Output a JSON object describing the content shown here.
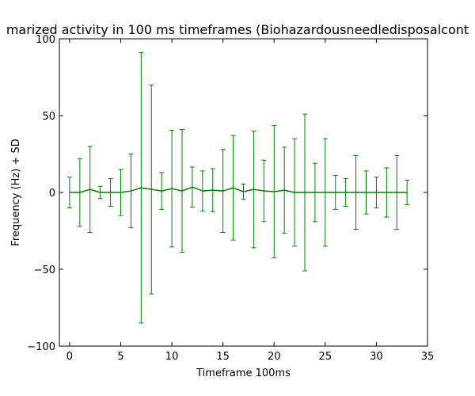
{
  "chart_data": {
    "type": "line",
    "title": "marized activity in 100 ms timeframes (Biohazardousneedledisposalcont",
    "xlabel": "Timeframe 100ms",
    "ylabel": "Frequency (Hz) + SD",
    "xlim": [
      -1,
      35
    ],
    "ylim": [
      -100,
      100
    ],
    "xticks": [
      0,
      5,
      10,
      15,
      20,
      25,
      30,
      35
    ],
    "yticks": [
      -100,
      -50,
      0,
      50,
      100
    ],
    "xtick_labels": [
      "0",
      "5",
      "10",
      "15",
      "20",
      "25",
      "30",
      "35"
    ],
    "ytick_labels": [
      "−100",
      "−50",
      "0",
      "50",
      "100"
    ],
    "grid": false,
    "color": "#008000",
    "series": [
      {
        "x": [
          0,
          1,
          2,
          3,
          4,
          5,
          6,
          7,
          8,
          9,
          10,
          11,
          12,
          13,
          14,
          15,
          16,
          17,
          18,
          19,
          20,
          21,
          22,
          23,
          24,
          25,
          26,
          27,
          28,
          29,
          30,
          31,
          32,
          33
        ],
        "y": [
          0,
          0,
          2,
          0,
          0,
          0,
          1,
          3,
          2,
          1,
          2.5,
          1,
          3.5,
          1,
          1.5,
          1,
          3,
          0.5,
          2,
          1,
          0.5,
          1.5,
          0,
          0,
          0,
          0,
          0,
          0,
          0,
          0,
          0,
          0,
          0,
          0
        ],
        "err": [
          10,
          22,
          28,
          4,
          9,
          15,
          24,
          88,
          68,
          12,
          38,
          40,
          13,
          13,
          14,
          27,
          34,
          5,
          38,
          20,
          43,
          28,
          35,
          51,
          19,
          35,
          11,
          9,
          24,
          14,
          10,
          16,
          24,
          8
        ]
      }
    ]
  }
}
